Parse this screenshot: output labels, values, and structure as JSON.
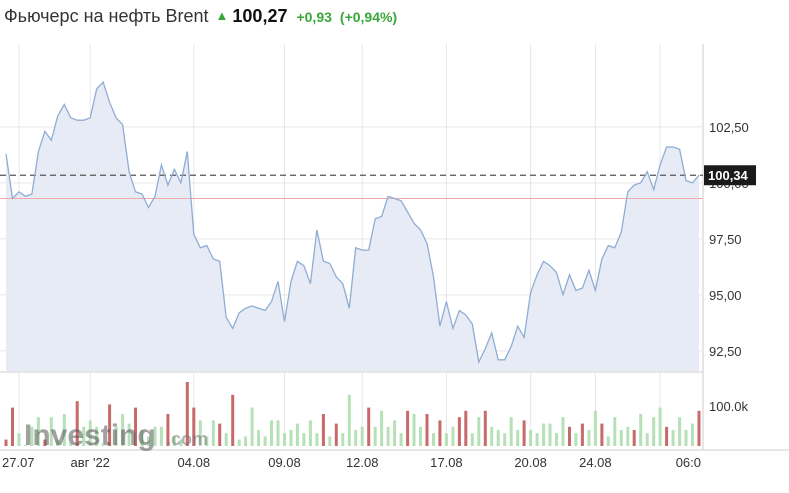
{
  "header": {
    "title": "Фьючерс на нефть Brent",
    "arrow": "▲",
    "price": "100,27",
    "change": "+0,93",
    "change_pct": "(+0,94%)"
  },
  "colors": {
    "line": "#8fadd3",
    "area": "#e7ebf5",
    "ref_line": "#f0a8a8",
    "up_bar": "#b6e0b6",
    "down_bar": "#c96a6a",
    "current_tag_bg": "#1a1a1a",
    "grid": "#e6e6e6"
  },
  "watermark": {
    "brand": "Investing",
    "suffix": ".com"
  },
  "chart_data": {
    "type": "line",
    "ylim": [
      91.6,
      106.2
    ],
    "y_ticks": [
      "102,50",
      "100,00",
      "97,50",
      "95,00",
      "92,50"
    ],
    "y_tick_values": [
      102.5,
      100.0,
      97.5,
      95.0,
      92.5
    ],
    "current_label": "100,34",
    "current_value": 100.34,
    "reference_value": 99.3,
    "x_tick_labels": [
      "27.07",
      "авг '22",
      "04.08",
      "09.08",
      "12.08",
      "17.08",
      "20.08",
      "24.08",
      "06:0"
    ],
    "x_tick_positions": [
      2,
      13,
      29,
      43,
      55,
      68,
      81,
      91,
      101
    ],
    "series": [
      {
        "values": [
          101.3,
          99.3,
          99.6,
          99.4,
          99.5,
          101.4,
          102.3,
          101.9,
          103.0,
          103.5,
          102.9,
          102.8,
          102.8,
          102.9,
          104.2,
          104.5,
          103.6,
          102.9,
          102.6,
          100.5,
          99.6,
          99.5,
          98.9,
          99.4,
          100.8,
          99.9,
          100.6,
          100.0,
          101.4,
          97.7,
          97.1,
          97.2,
          96.6,
          96.5,
          94.0,
          93.5,
          94.2,
          94.4,
          94.5,
          94.4,
          94.3,
          94.7,
          95.6,
          93.8,
          95.6,
          96.5,
          96.3,
          95.5,
          97.9,
          96.5,
          96.4,
          95.8,
          95.5,
          94.4,
          97.1,
          97.0,
          97.0,
          98.4,
          98.5,
          99.4,
          99.3,
          99.2,
          98.7,
          98.2,
          97.9,
          97.3,
          95.8,
          93.6,
          94.7,
          93.5,
          94.3,
          94.1,
          93.7,
          92.0,
          92.6,
          93.3,
          92.1,
          92.1,
          92.7,
          93.6,
          93.1,
          95.1,
          95.9,
          96.5,
          96.3,
          96.0,
          95.0,
          95.9,
          95.2,
          95.3,
          96.1,
          95.2,
          96.6,
          97.2,
          97.1,
          97.8,
          99.6,
          99.9,
          100.0,
          100.5,
          99.7,
          100.8,
          101.6,
          101.6,
          101.5,
          100.1,
          100.0,
          100.34
        ]
      }
    ],
    "volume": {
      "label": "100.0k",
      "values": [
        0.1,
        0.6,
        0.2,
        0.0,
        0.3,
        0.45,
        0.1,
        0.45,
        0.1,
        0.5,
        0.05,
        0.7,
        0.3,
        0.4,
        0.3,
        0.05,
        0.65,
        0.3,
        0.5,
        0.35,
        0.6,
        0.25,
        0.15,
        0.3,
        0.3,
        0.5,
        0.15,
        0.1,
        1.0,
        0.6,
        0.4,
        0.15,
        0.4,
        0.35,
        0.2,
        0.8,
        0.1,
        0.15,
        0.6,
        0.25,
        0.15,
        0.4,
        0.4,
        0.2,
        0.25,
        0.35,
        0.2,
        0.4,
        0.2,
        0.5,
        0.15,
        0.35,
        0.2,
        0.8,
        0.25,
        0.3,
        0.6,
        0.3,
        0.55,
        0.3,
        0.4,
        0.2,
        0.55,
        0.5,
        0.3,
        0.5,
        0.2,
        0.4,
        0.2,
        0.3,
        0.45,
        0.55,
        0.2,
        0.45,
        0.55,
        0.3,
        0.25,
        0.2,
        0.45,
        0.25,
        0.4,
        0.25,
        0.2,
        0.35,
        0.35,
        0.2,
        0.45,
        0.3,
        0.2,
        0.35,
        0.25,
        0.55,
        0.35,
        0.15,
        0.45,
        0.25,
        0.3,
        0.25,
        0.5,
        0.2,
        0.45,
        0.6,
        0.3,
        0.25,
        0.45,
        0.25,
        0.35,
        0.55
      ],
      "directions": [
        "d",
        "d",
        "u",
        "u",
        "u",
        "u",
        "d",
        "u",
        "u",
        "u",
        "u",
        "d",
        "u",
        "u",
        "u",
        "u",
        "d",
        "u",
        "u",
        "u",
        "d",
        "u",
        "u",
        "u",
        "u",
        "d",
        "u",
        "u",
        "d",
        "d",
        "u",
        "u",
        "u",
        "d",
        "u",
        "d",
        "u",
        "u",
        "u",
        "u",
        "u",
        "u",
        "u",
        "u",
        "u",
        "u",
        "u",
        "u",
        "u",
        "d",
        "u",
        "d",
        "u",
        "u",
        "u",
        "u",
        "d",
        "u",
        "u",
        "u",
        "u",
        "u",
        "d",
        "u",
        "u",
        "d",
        "u",
        "d",
        "u",
        "u",
        "d",
        "d",
        "u",
        "u",
        "d",
        "u",
        "u",
        "u",
        "u",
        "u",
        "d",
        "u",
        "u",
        "u",
        "u",
        "u",
        "u",
        "d",
        "u",
        "d",
        "u",
        "u",
        "d",
        "u",
        "u",
        "u",
        "u",
        "d",
        "u",
        "u",
        "u",
        "u",
        "d",
        "u",
        "u",
        "u",
        "u",
        "d"
      ]
    }
  }
}
